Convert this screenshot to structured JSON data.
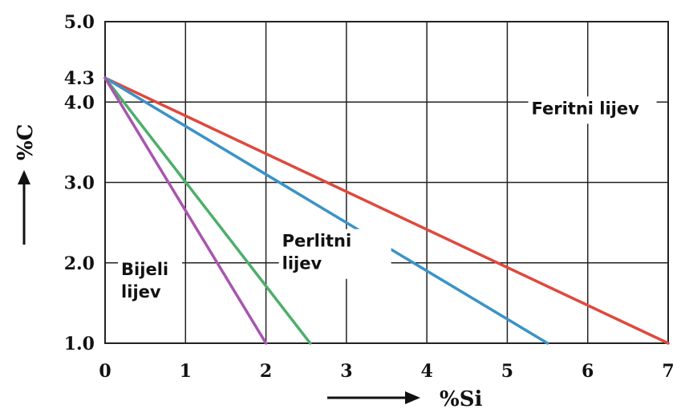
{
  "chart_data": {
    "type": "line",
    "title": "",
    "xlabel": "%Si",
    "ylabel": "%C",
    "xlim": [
      0,
      7
    ],
    "ylim": [
      1.0,
      5.0
    ],
    "grid": true,
    "x_ticks": [
      "0",
      "1",
      "2",
      "3",
      "4",
      "5",
      "6",
      "7"
    ],
    "y_ticks": [
      "1.0",
      "2.0",
      "3.0",
      "4.0",
      "4.3",
      "5.0"
    ],
    "series": [
      {
        "color": "#e0483c",
        "points": [
          [
            0,
            4.3
          ],
          [
            7,
            1.0
          ]
        ]
      },
      {
        "color": "#3a93c8",
        "points": [
          [
            0,
            4.3
          ],
          [
            5.5,
            1.0
          ]
        ]
      },
      {
        "color": "#4caf6a",
        "points": [
          [
            0,
            4.3
          ],
          [
            2.55,
            1.0
          ]
        ]
      },
      {
        "color": "#a855b0",
        "points": [
          [
            0,
            4.3
          ],
          [
            2.0,
            1.0
          ]
        ]
      }
    ],
    "regions": [
      {
        "label": "Feritni lijev",
        "x": 5.3,
        "y": 3.85
      },
      {
        "label": "Perlitni lijev",
        "x": 2.2,
        "y": 2.2
      },
      {
        "label": "Bijeli lijev",
        "x": 0.2,
        "y": 1.85
      }
    ]
  }
}
